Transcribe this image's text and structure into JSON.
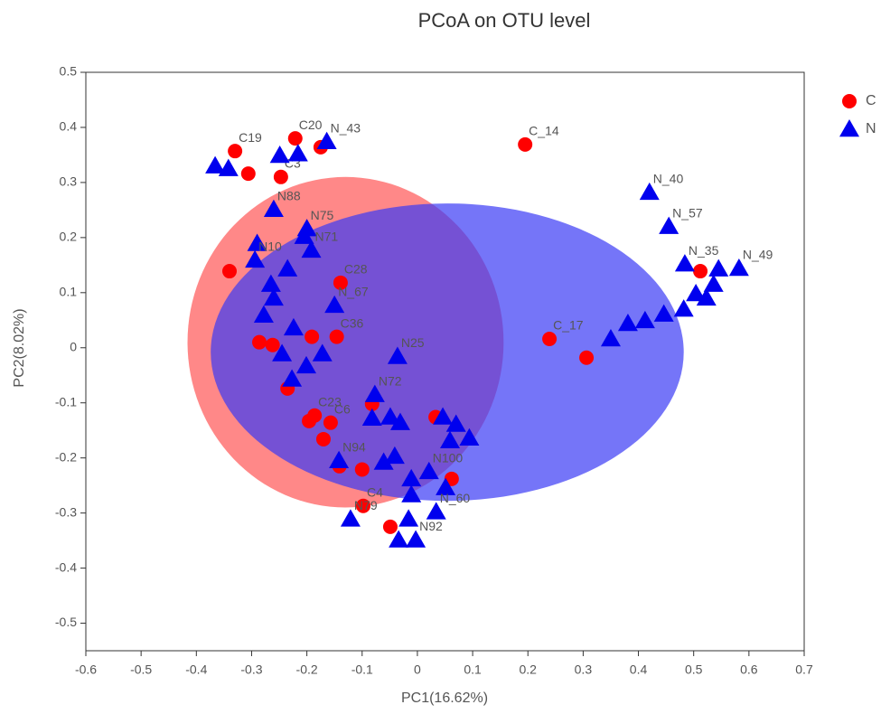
{
  "chart_data": {
    "type": "scatter",
    "title": "PCoA on OTU level",
    "xlabel": "PC1(16.62%)",
    "ylabel": "PC2(8.02%)",
    "xlim": [
      -0.6,
      0.7
    ],
    "xticks": [
      -0.6,
      -0.5,
      -0.4,
      -0.3,
      -0.2,
      -0.1,
      0,
      0.1,
      0.2,
      0.3,
      0.4,
      0.5,
      0.6,
      0.7
    ],
    "ylim": [
      -0.55,
      0.5
    ],
    "yticks": [
      -0.5,
      -0.4,
      -0.3,
      -0.2,
      -0.1,
      0,
      0.1,
      0.2,
      0.3,
      0.4,
      0.5
    ],
    "grid": false,
    "legend": "top-right",
    "ellipses": [
      {
        "cx": -0.13,
        "cy": 0.01,
        "rx": 0.286,
        "ry": 0.3,
        "color": "#ff5555"
      },
      {
        "cx": 0.054,
        "cy": -0.008,
        "rx": 0.428,
        "ry": 0.27,
        "color": "#3b3bf5"
      }
    ],
    "series": [
      {
        "name": "C",
        "color": "#ff0000",
        "marker": "circle",
        "x": [
          -0.33,
          -0.306,
          -0.221,
          -0.175,
          -0.247,
          0.195,
          -0.34,
          -0.139,
          -0.286,
          -0.262,
          -0.191,
          -0.146,
          -0.235,
          -0.186,
          -0.196,
          -0.17,
          -0.157,
          -0.141,
          -0.1,
          -0.082,
          0.062,
          0.033,
          -0.098,
          -0.049,
          0.239,
          0.306,
          0.512
        ],
        "y": [
          0.357,
          0.316,
          0.38,
          0.364,
          0.31,
          0.369,
          0.139,
          0.118,
          0.01,
          0.005,
          0.02,
          0.02,
          -0.074,
          -0.123,
          -0.133,
          -0.166,
          -0.136,
          -0.215,
          -0.221,
          -0.102,
          -0.238,
          -0.126,
          -0.287,
          -0.325,
          0.016,
          -0.018,
          0.139
        ],
        "labels": [
          "C19",
          null,
          "C20",
          null,
          "C3",
          "C_14",
          null,
          "C28",
          null,
          null,
          null,
          "C36",
          null,
          "C23",
          null,
          null,
          "C6",
          null,
          null,
          null,
          null,
          null,
          "C4",
          null,
          "C_17",
          null,
          null
        ]
      },
      {
        "name": "N",
        "color": "#0000ee",
        "marker": "triangle",
        "x": [
          -0.366,
          -0.342,
          -0.249,
          -0.216,
          -0.164,
          -0.26,
          -0.2,
          -0.205,
          -0.192,
          -0.29,
          -0.294,
          -0.235,
          -0.265,
          -0.26,
          -0.278,
          -0.224,
          -0.245,
          -0.172,
          -0.201,
          -0.227,
          -0.15,
          -0.036,
          -0.077,
          -0.082,
          -0.049,
          -0.031,
          -0.142,
          -0.061,
          -0.041,
          -0.011,
          0.021,
          0.051,
          -0.011,
          0.034,
          -0.121,
          -0.016,
          -0.034,
          -0.003,
          0.046,
          0.07,
          0.094,
          0.059,
          0.42,
          0.455,
          0.484,
          0.545,
          0.582,
          0.504,
          0.523,
          0.482,
          0.446,
          0.412,
          0.381,
          0.35,
          0.536
        ],
        "y": [
          0.33,
          0.325,
          0.349,
          0.352,
          0.374,
          0.251,
          0.216,
          0.202,
          0.177,
          0.189,
          0.159,
          0.143,
          0.115,
          0.09,
          0.059,
          0.036,
          -0.011,
          -0.011,
          -0.033,
          -0.057,
          0.077,
          -0.016,
          -0.085,
          -0.128,
          -0.126,
          -0.136,
          -0.205,
          -0.208,
          -0.197,
          -0.238,
          -0.225,
          -0.254,
          -0.267,
          -0.298,
          -0.311,
          -0.311,
          -0.349,
          -0.349,
          -0.126,
          -0.139,
          -0.164,
          -0.169,
          0.282,
          0.22,
          0.152,
          0.143,
          0.144,
          0.098,
          0.09,
          0.07,
          0.061,
          0.049,
          0.044,
          0.016,
          0.115
        ],
        "labels": [
          null,
          null,
          null,
          null,
          "N_43",
          "N88",
          "N75",
          null,
          "N71",
          null,
          "N10",
          null,
          null,
          null,
          null,
          null,
          null,
          null,
          null,
          null,
          "N_67",
          "N25",
          "N72",
          null,
          null,
          null,
          "N94",
          null,
          null,
          null,
          "N100",
          null,
          null,
          "N_60",
          "N79",
          null,
          null,
          "N92",
          null,
          null,
          null,
          null,
          "N_40",
          "N_57",
          "N_35",
          null,
          "N_49",
          null,
          null,
          null,
          null,
          null,
          null,
          null,
          null
        ]
      }
    ]
  }
}
